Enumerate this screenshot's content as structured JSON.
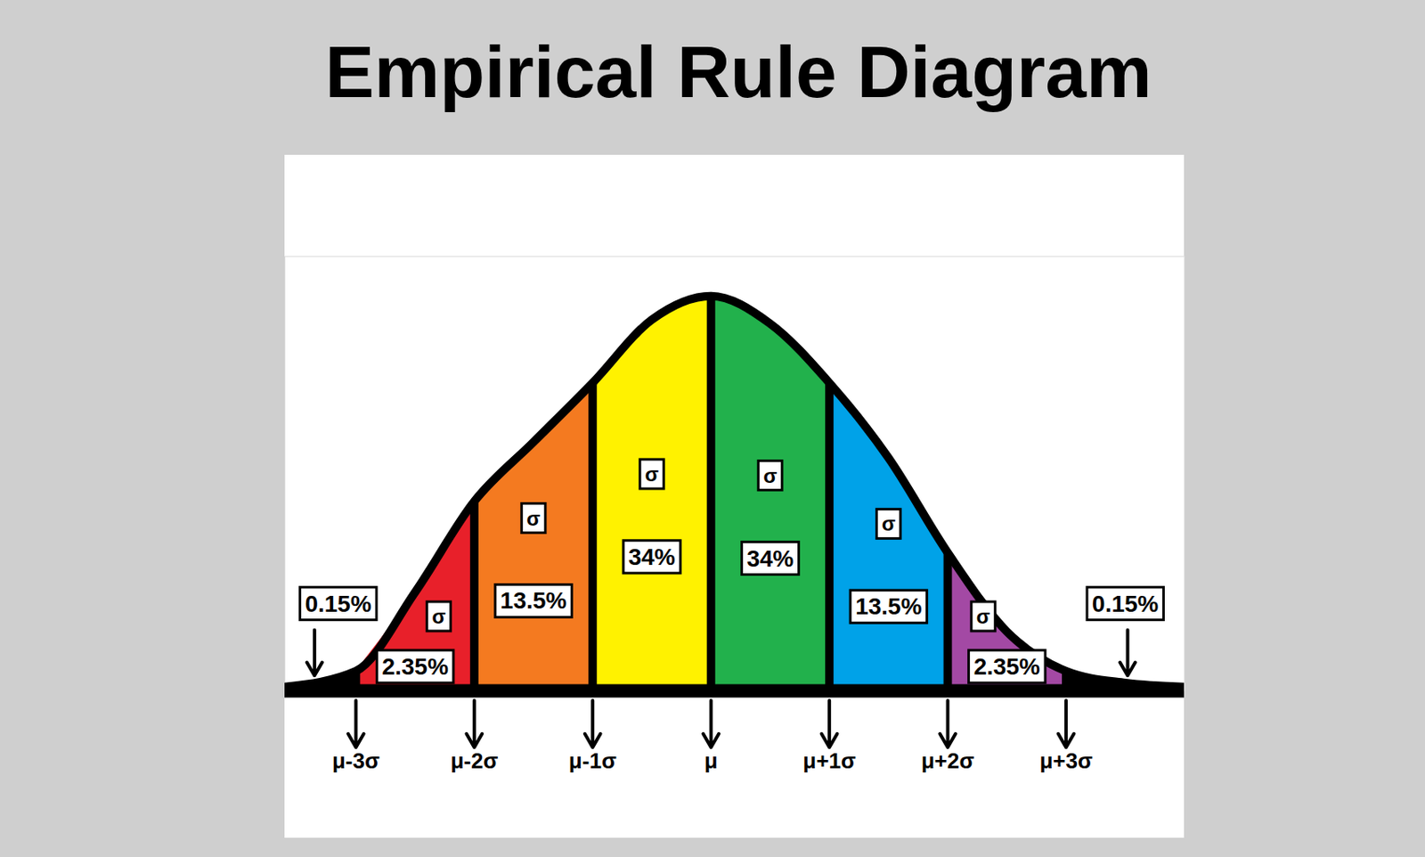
{
  "chart_data": {
    "type": "area",
    "title": "Empirical Rule Diagram",
    "x": [
      -3.6,
      -3,
      -2.5,
      -2,
      -1.5,
      -1,
      -0.5,
      0,
      0.5,
      1,
      1.5,
      2,
      2.5,
      3,
      3.5,
      4
    ],
    "values": [
      1,
      5,
      25,
      48,
      63,
      78,
      94,
      100,
      93,
      78,
      59,
      35,
      15,
      5,
      2,
      1
    ],
    "color": "#000000",
    "xlim": [
      -3.6,
      4
    ],
    "ylim": [
      0,
      110
    ],
    "xticks": [
      {
        "value": -3,
        "label": "μ-3σ"
      },
      {
        "value": -2,
        "label": "μ-2σ"
      },
      {
        "value": -1,
        "label": "μ-1σ"
      },
      {
        "value": 0,
        "label": "μ"
      },
      {
        "value": 1,
        "label": "μ+1σ"
      },
      {
        "value": 2,
        "label": "μ+2σ"
      },
      {
        "value": 3,
        "label": "μ+3σ"
      }
    ],
    "tick_labels": "x",
    "data_labels": true,
    "regions": {
      "bounds": [
        -3.6,
        -3,
        -2,
        -1,
        0,
        1,
        2,
        3,
        4
      ],
      "values": [
        0.15,
        2.35,
        13.5,
        34,
        34,
        13.5,
        2.35,
        0.15
      ],
      "value_labels": [
        "0.15%",
        "2.35%",
        "13.5%",
        "34%",
        "34%",
        "13.5%",
        "2.35%",
        "0.15%"
      ],
      "colors": [
        "#000000",
        "#e8202a",
        "#f47a20",
        "#fff200",
        "#22b14c",
        "#00a2e8",
        "#a349a4",
        "#000000"
      ],
      "segment_label": "σ"
    }
  }
}
